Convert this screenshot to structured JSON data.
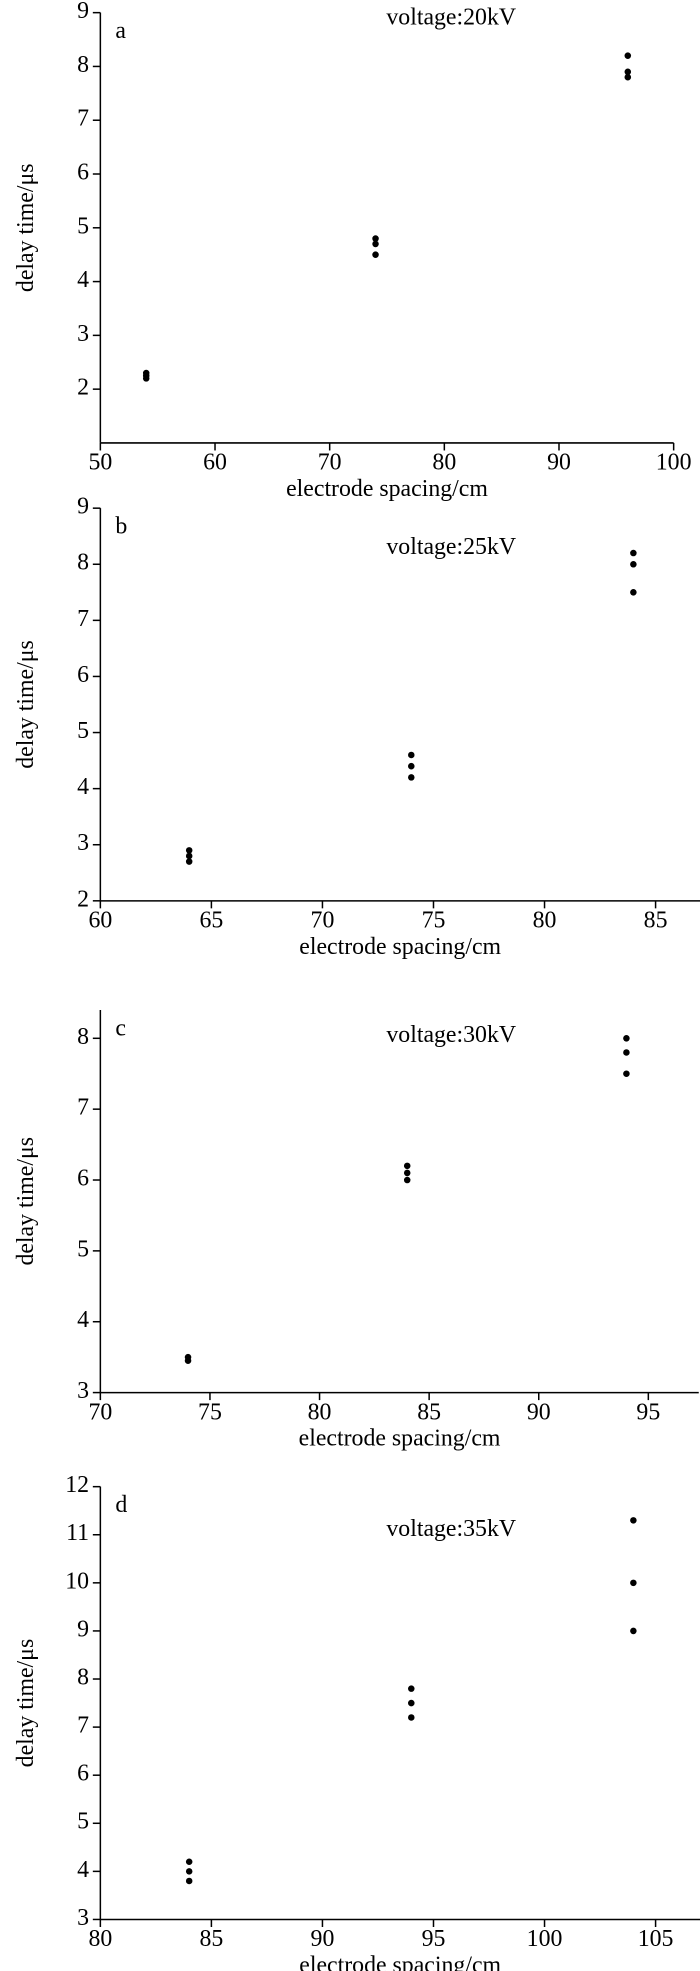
{
  "chart_data": [
    {
      "type": "scatter",
      "label": "a",
      "annotation": "voltage:20kV",
      "xlabel": "electrode spacing/cm",
      "ylabel": "delay time/μs",
      "color": "#000000",
      "x": [
        54,
        54,
        54,
        74,
        74,
        74,
        96,
        96,
        96
      ],
      "values": [
        2.2,
        2.25,
        2.3,
        4.5,
        4.7,
        4.8,
        7.8,
        7.9,
        8.2
      ],
      "xlim": [
        50,
        100
      ],
      "xticks": [
        50,
        60,
        70,
        80,
        90,
        100
      ],
      "ylim": [
        1,
        9
      ],
      "yticks": [
        2,
        3,
        4,
        5,
        6,
        7,
        8,
        9
      ]
    },
    {
      "type": "scatter",
      "label": "b",
      "annotation": "voltage:25kV",
      "xlabel": "electrode spacing/cm",
      "ylabel": "delay time/μs",
      "color": "#000000",
      "x": [
        64,
        64,
        64,
        74,
        74,
        74,
        84,
        84,
        84
      ],
      "values": [
        2.7,
        2.8,
        2.9,
        4.2,
        4.4,
        4.6,
        7.5,
        8.0,
        8.2
      ],
      "xlim": [
        60,
        87
      ],
      "xticks": [
        60,
        65,
        70,
        75,
        80,
        85
      ],
      "ylim": [
        2,
        9
      ],
      "yticks": [
        2,
        3,
        4,
        5,
        6,
        7,
        8,
        9
      ]
    },
    {
      "type": "scatter",
      "label": "c",
      "annotation": "voltage:30kV",
      "xlabel": "electrode spacing/cm",
      "ylabel": "delay time/μs",
      "color": "#000000",
      "x": [
        74,
        74,
        84,
        84,
        84,
        94,
        94,
        94
      ],
      "values": [
        3.45,
        3.5,
        6.0,
        6.1,
        6.2,
        7.5,
        7.8,
        8.0
      ],
      "xlim": [
        70,
        97.3
      ],
      "xticks": [
        70,
        75,
        80,
        85,
        90,
        95
      ],
      "ylim": [
        3,
        8.4
      ],
      "yticks": [
        3,
        4,
        5,
        6,
        7,
        8
      ]
    },
    {
      "type": "scatter",
      "label": "d",
      "annotation": "voltage:35kV",
      "xlabel": "electrode spacing/cm",
      "ylabel": "delay time/μs",
      "color": "#000000",
      "x": [
        84,
        84,
        84,
        94,
        94,
        94,
        104,
        104,
        104
      ],
      "values": [
        3.8,
        4.0,
        4.2,
        7.2,
        7.5,
        7.8,
        9.0,
        10.0,
        11.3
      ],
      "xlim": [
        80,
        107
      ],
      "xticks": [
        80,
        85,
        90,
        95,
        100,
        105
      ],
      "ylim": [
        3,
        12
      ],
      "yticks": [
        3,
        4,
        5,
        6,
        7,
        8,
        9,
        10,
        11,
        12
      ]
    }
  ]
}
